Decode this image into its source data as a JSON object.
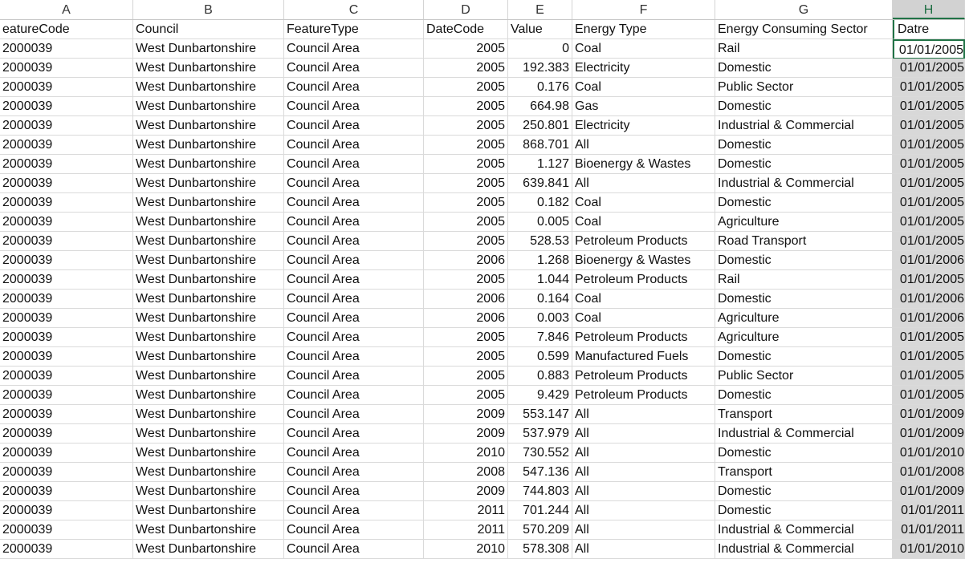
{
  "column_letters": [
    "A",
    "B",
    "C",
    "D",
    "E",
    "F",
    "G",
    "H"
  ],
  "header_row": [
    "eatureCode",
    "Council",
    "FeatureType",
    "DateCode",
    "Value",
    "Energy Type",
    "Energy Consuming Sector",
    "Datre"
  ],
  "rows": [
    [
      "2000039",
      "West Dunbartonshire",
      "Council Area",
      "2005",
      "0",
      "Coal",
      "Rail",
      "01/01/2005"
    ],
    [
      "2000039",
      "West Dunbartonshire",
      "Council Area",
      "2005",
      "192.383",
      "Electricity",
      "Domestic",
      "01/01/2005"
    ],
    [
      "2000039",
      "West Dunbartonshire",
      "Council Area",
      "2005",
      "0.176",
      "Coal",
      "Public Sector",
      "01/01/2005"
    ],
    [
      "2000039",
      "West Dunbartonshire",
      "Council Area",
      "2005",
      "664.98",
      "Gas",
      "Domestic",
      "01/01/2005"
    ],
    [
      "2000039",
      "West Dunbartonshire",
      "Council Area",
      "2005",
      "250.801",
      "Electricity",
      "Industrial & Commercial",
      "01/01/2005"
    ],
    [
      "2000039",
      "West Dunbartonshire",
      "Council Area",
      "2005",
      "868.701",
      "All",
      "Domestic",
      "01/01/2005"
    ],
    [
      "2000039",
      "West Dunbartonshire",
      "Council Area",
      "2005",
      "1.127",
      "Bioenergy & Wastes",
      "Domestic",
      "01/01/2005"
    ],
    [
      "2000039",
      "West Dunbartonshire",
      "Council Area",
      "2005",
      "639.841",
      "All",
      "Industrial & Commercial",
      "01/01/2005"
    ],
    [
      "2000039",
      "West Dunbartonshire",
      "Council Area",
      "2005",
      "0.182",
      "Coal",
      "Domestic",
      "01/01/2005"
    ],
    [
      "2000039",
      "West Dunbartonshire",
      "Council Area",
      "2005",
      "0.005",
      "Coal",
      "Agriculture",
      "01/01/2005"
    ],
    [
      "2000039",
      "West Dunbartonshire",
      "Council Area",
      "2005",
      "528.53",
      "Petroleum Products",
      "Road Transport",
      "01/01/2005"
    ],
    [
      "2000039",
      "West Dunbartonshire",
      "Council Area",
      "2006",
      "1.268",
      "Bioenergy & Wastes",
      "Domestic",
      "01/01/2006"
    ],
    [
      "2000039",
      "West Dunbartonshire",
      "Council Area",
      "2005",
      "1.044",
      "Petroleum Products",
      "Rail",
      "01/01/2005"
    ],
    [
      "2000039",
      "West Dunbartonshire",
      "Council Area",
      "2006",
      "0.164",
      "Coal",
      "Domestic",
      "01/01/2006"
    ],
    [
      "2000039",
      "West Dunbartonshire",
      "Council Area",
      "2006",
      "0.003",
      "Coal",
      "Agriculture",
      "01/01/2006"
    ],
    [
      "2000039",
      "West Dunbartonshire",
      "Council Area",
      "2005",
      "7.846",
      "Petroleum Products",
      "Agriculture",
      "01/01/2005"
    ],
    [
      "2000039",
      "West Dunbartonshire",
      "Council Area",
      "2005",
      "0.599",
      "Manufactured Fuels",
      "Domestic",
      "01/01/2005"
    ],
    [
      "2000039",
      "West Dunbartonshire",
      "Council Area",
      "2005",
      "0.883",
      "Petroleum Products",
      "Public Sector",
      "01/01/2005"
    ],
    [
      "2000039",
      "West Dunbartonshire",
      "Council Area",
      "2005",
      "9.429",
      "Petroleum Products",
      "Domestic",
      "01/01/2005"
    ],
    [
      "2000039",
      "West Dunbartonshire",
      "Council Area",
      "2009",
      "553.147",
      "All",
      "Transport",
      "01/01/2009"
    ],
    [
      "2000039",
      "West Dunbartonshire",
      "Council Area",
      "2009",
      "537.979",
      "All",
      "Industrial & Commercial",
      "01/01/2009"
    ],
    [
      "2000039",
      "West Dunbartonshire",
      "Council Area",
      "2010",
      "730.552",
      "All",
      "Domestic",
      "01/01/2010"
    ],
    [
      "2000039",
      "West Dunbartonshire",
      "Council Area",
      "2008",
      "547.136",
      "All",
      "Transport",
      "01/01/2008"
    ],
    [
      "2000039",
      "West Dunbartonshire",
      "Council Area",
      "2009",
      "744.803",
      "All",
      "Domestic",
      "01/01/2009"
    ],
    [
      "2000039",
      "West Dunbartonshire",
      "Council Area",
      "2011",
      "701.244",
      "All",
      "Domestic",
      "01/01/2011"
    ],
    [
      "2000039",
      "West Dunbartonshire",
      "Council Area",
      "2011",
      "570.209",
      "All",
      "Industrial & Commercial",
      "01/01/2011"
    ],
    [
      "2000039",
      "West Dunbartonshire",
      "Council Area",
      "2010",
      "578.308",
      "All",
      "Industrial & Commercial",
      "01/01/2010"
    ]
  ],
  "selected_column": "H",
  "colors": {
    "selection_border": "#217346",
    "selection_fill": "#d8d8d8"
  }
}
